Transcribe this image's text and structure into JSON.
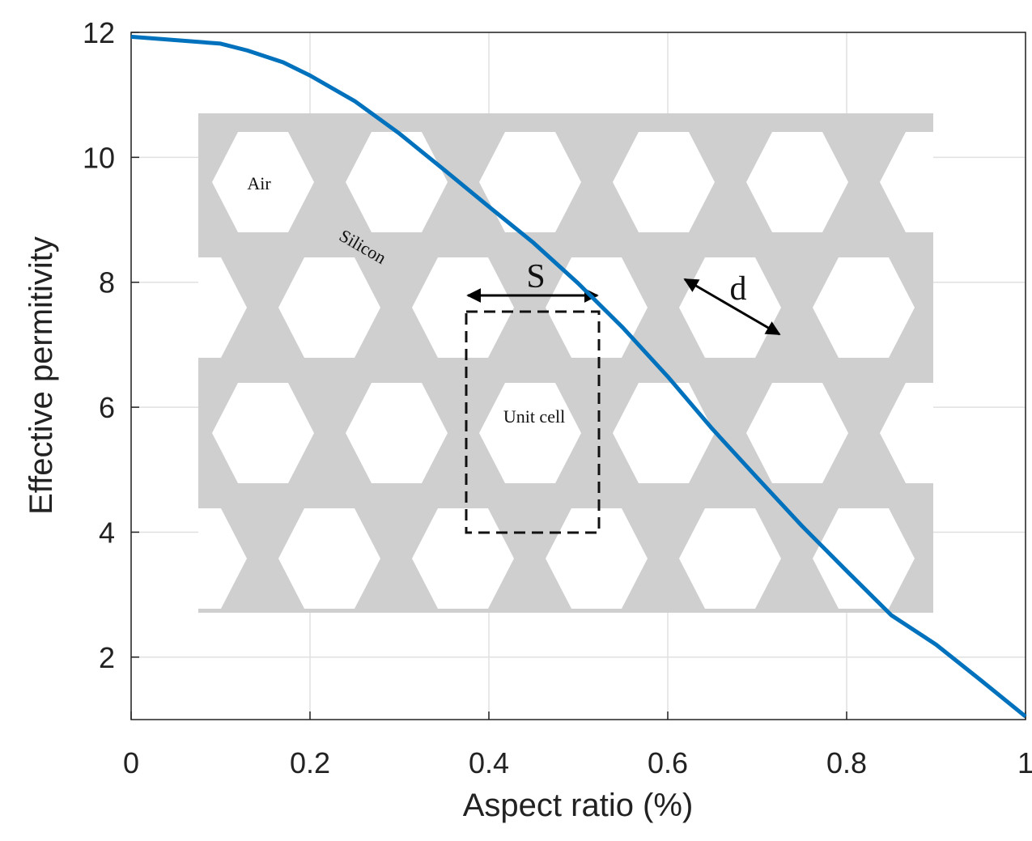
{
  "chart_data": {
    "type": "line",
    "xlabel": "Aspect ratio (%)",
    "ylabel": "Effective permitivity",
    "x": [
      0,
      0.1,
      0.13,
      0.17,
      0.2,
      0.25,
      0.3,
      0.35,
      0.4,
      0.45,
      0.5,
      0.55,
      0.6,
      0.65,
      0.7,
      0.75,
      0.8,
      0.85,
      0.9,
      0.95,
      1.0
    ],
    "series": [
      {
        "color": "#0072bd",
        "values": [
          11.93,
          11.82,
          11.71,
          11.52,
          11.31,
          10.9,
          10.38,
          9.8,
          9.21,
          8.63,
          7.98,
          7.27,
          6.49,
          5.65,
          4.87,
          4.1,
          3.38,
          2.67,
          2.2,
          1.63,
          1.05
        ]
      }
    ],
    "xlim": [
      0,
      1
    ],
    "ylim": [
      1,
      12
    ],
    "xticks": [
      0,
      0.2,
      0.4,
      0.6,
      0.8,
      1
    ],
    "yticks": [
      2,
      4,
      6,
      8,
      10,
      12
    ],
    "grid": true,
    "annotations": [
      "Air",
      "Silicon",
      "S",
      "d",
      "Unit cell"
    ]
  }
}
